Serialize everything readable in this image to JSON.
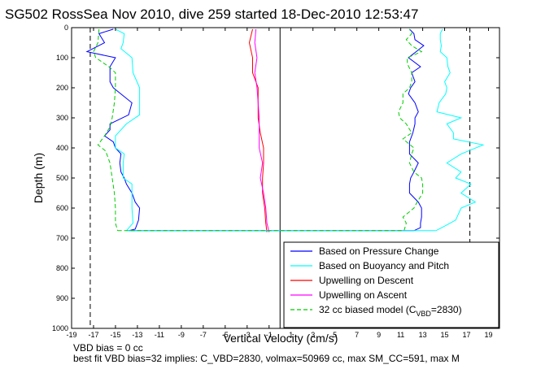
{
  "chart_data": {
    "type": "line",
    "title": "SG502 RossSea Nov 2010, dive 259 started 18-Dec-2010 12:53:47",
    "xlabel": "Vertical Velocity (cm/s)",
    "ylabel": "Depth (m)",
    "xlim": [
      -19,
      20
    ],
    "ylim": [
      1000,
      0
    ],
    "y_reversed": true,
    "x_ticks": [
      -19,
      -17,
      -15,
      -13,
      -11,
      -9,
      -7,
      -5,
      -3,
      -1,
      1,
      3,
      5,
      7,
      9,
      11,
      13,
      15,
      17,
      19
    ],
    "y_ticks": [
      0,
      100,
      200,
      300,
      400,
      500,
      600,
      700,
      800,
      900,
      1000
    ],
    "grid": false,
    "legend_position": "bottom-right",
    "reference_lines": {
      "dashed_vertical_black": [
        -17.3,
        17.3
      ],
      "solid_vertical_black": [
        0
      ]
    },
    "series": [
      {
        "name": "Based on Pressure Change",
        "color": "#0000ff",
        "style": "solid",
        "descent": [
          [
            -15.2,
            5
          ],
          [
            -16.5,
            20
          ],
          [
            -16,
            50
          ],
          [
            -17.6,
            80
          ],
          [
            -15,
            100
          ],
          [
            -15.5,
            130
          ],
          [
            -15.5,
            150
          ],
          [
            -15.5,
            180
          ],
          [
            -15.2,
            200
          ],
          [
            -13.5,
            250
          ],
          [
            -13.8,
            290
          ],
          [
            -15.5,
            320
          ],
          [
            -15.5,
            340
          ],
          [
            -16,
            360
          ],
          [
            -15.2,
            380
          ],
          [
            -15,
            400
          ],
          [
            -14.5,
            420
          ],
          [
            -14.6,
            450
          ],
          [
            -14.5,
            480
          ],
          [
            -14.2,
            500
          ],
          [
            -14,
            520
          ],
          [
            -13.5,
            550
          ],
          [
            -13.2,
            580
          ],
          [
            -12.8,
            600
          ],
          [
            -12.9,
            640
          ],
          [
            -13.2,
            670
          ],
          [
            -13.8,
            675
          ]
        ],
        "ascent": [
          [
            12.2,
            675
          ],
          [
            12.8,
            665
          ],
          [
            12.8,
            650
          ],
          [
            12.9,
            630
          ],
          [
            12.9,
            600
          ],
          [
            12.6,
            580
          ],
          [
            11.8,
            550
          ],
          [
            11.8,
            520
          ],
          [
            11.9,
            500
          ],
          [
            12.2,
            480
          ],
          [
            12.6,
            450
          ],
          [
            11.8,
            420
          ],
          [
            11.8,
            380
          ],
          [
            12.1,
            350
          ],
          [
            12.3,
            320
          ],
          [
            12.3,
            300
          ],
          [
            12.6,
            280
          ],
          [
            12.3,
            250
          ],
          [
            11.7,
            220
          ],
          [
            11.9,
            200
          ],
          [
            12.3,
            180
          ],
          [
            12,
            150
          ],
          [
            12.8,
            130
          ],
          [
            11.7,
            100
          ],
          [
            12.4,
            80
          ],
          [
            13.1,
            60
          ],
          [
            12.3,
            40
          ],
          [
            12.2,
            20
          ],
          [
            11.8,
            5
          ]
        ]
      },
      {
        "name": "Based on Buoyancy and Pitch",
        "color": "#00ffff",
        "style": "solid",
        "descent": [
          [
            -15,
            5
          ],
          [
            -14.2,
            20
          ],
          [
            -14.3,
            50
          ],
          [
            -14.5,
            70
          ],
          [
            -13.5,
            100
          ],
          [
            -13.4,
            150
          ],
          [
            -12.8,
            200
          ],
          [
            -12.8,
            250
          ],
          [
            -12.8,
            290
          ],
          [
            -14,
            320
          ],
          [
            -15,
            360
          ],
          [
            -15,
            400
          ],
          [
            -14.2,
            420
          ],
          [
            -14.3,
            450
          ],
          [
            -14.3,
            480
          ],
          [
            -14.3,
            500
          ],
          [
            -13.5,
            520
          ],
          [
            -13.5,
            550
          ],
          [
            -13.5,
            580
          ],
          [
            -13.5,
            600
          ],
          [
            -13.4,
            650
          ],
          [
            -14,
            675
          ]
        ],
        "ascent": [
          [
            14.2,
            675
          ],
          [
            15,
            660
          ],
          [
            16,
            640
          ],
          [
            16.5,
            600
          ],
          [
            17.8,
            580
          ],
          [
            16.5,
            550
          ],
          [
            17.4,
            520
          ],
          [
            16,
            500
          ],
          [
            16.5,
            480
          ],
          [
            15.2,
            450
          ],
          [
            16.5,
            420
          ],
          [
            18.5,
            390
          ],
          [
            15.8,
            370
          ],
          [
            15.8,
            350
          ],
          [
            15.2,
            320
          ],
          [
            16.5,
            300
          ],
          [
            14.3,
            280
          ],
          [
            14.5,
            250
          ],
          [
            15.1,
            220
          ],
          [
            15.2,
            200
          ],
          [
            15,
            180
          ],
          [
            15.5,
            150
          ],
          [
            15.3,
            130
          ],
          [
            15.2,
            100
          ],
          [
            14.6,
            80
          ],
          [
            14.7,
            60
          ],
          [
            14.6,
            40
          ],
          [
            14.6,
            20
          ],
          [
            14.8,
            5
          ]
        ]
      },
      {
        "name": "Upwelling on Descent",
        "color": "#ff0000",
        "style": "solid",
        "descent": [
          [
            -2.5,
            5
          ],
          [
            -2.8,
            50
          ],
          [
            -2.5,
            100
          ],
          [
            -2.5,
            150
          ],
          [
            -2,
            200
          ],
          [
            -2,
            250
          ],
          [
            -2,
            300
          ],
          [
            -1.8,
            350
          ],
          [
            -1.5,
            400
          ],
          [
            -1.5,
            450
          ],
          [
            -1.6,
            500
          ],
          [
            -1.6,
            550
          ],
          [
            -1.4,
            600
          ],
          [
            -1.3,
            650
          ],
          [
            -1.2,
            680
          ]
        ]
      },
      {
        "name": "Upwelling on Ascent",
        "color": "#ff00ff",
        "style": "solid",
        "ascent": [
          [
            -1,
            680
          ],
          [
            -1.2,
            650
          ],
          [
            -1.3,
            600
          ],
          [
            -1.5,
            550
          ],
          [
            -1.8,
            500
          ],
          [
            -1.6,
            450
          ],
          [
            -1.9,
            400
          ],
          [
            -1.9,
            350
          ],
          [
            -1.9,
            300
          ],
          [
            -2,
            250
          ],
          [
            -2.1,
            200
          ],
          [
            -2.3,
            150
          ],
          [
            -2.1,
            100
          ],
          [
            -2.3,
            50
          ],
          [
            -2.2,
            5
          ]
        ]
      },
      {
        "name": "32 cc biased model (CVBD=2830)",
        "color": "#00cc00",
        "style": "dashed",
        "descent": [
          [
            -16.5,
            5
          ],
          [
            -16.6,
            50
          ],
          [
            -17,
            80
          ],
          [
            -16.8,
            100
          ],
          [
            -15.6,
            130
          ],
          [
            -15,
            150
          ],
          [
            -15,
            200
          ],
          [
            -15.1,
            250
          ],
          [
            -15.3,
            300
          ],
          [
            -15.5,
            330
          ],
          [
            -16,
            360
          ],
          [
            -16.6,
            390
          ],
          [
            -15.9,
            410
          ],
          [
            -15.5,
            450
          ],
          [
            -15.3,
            500
          ],
          [
            -15.1,
            550
          ],
          [
            -15,
            600
          ],
          [
            -15,
            650
          ],
          [
            -14.8,
            675
          ]
        ],
        "ascent": [
          [
            11.3,
            675
          ],
          [
            11.5,
            650
          ],
          [
            11.2,
            630
          ],
          [
            12.2,
            600
          ],
          [
            12.5,
            580
          ],
          [
            13,
            550
          ],
          [
            13,
            520
          ],
          [
            12.9,
            500
          ],
          [
            12.2,
            480
          ],
          [
            11.8,
            450
          ],
          [
            12,
            420
          ],
          [
            12.2,
            400
          ],
          [
            11.2,
            370
          ],
          [
            12,
            350
          ],
          [
            11.5,
            320
          ],
          [
            10.9,
            300
          ],
          [
            10.8,
            280
          ],
          [
            11.2,
            250
          ],
          [
            11.2,
            220
          ],
          [
            11.8,
            200
          ],
          [
            12,
            180
          ],
          [
            12,
            150
          ],
          [
            11.6,
            120
          ],
          [
            11.6,
            100
          ],
          [
            12.9,
            80
          ],
          [
            12,
            60
          ],
          [
            11.5,
            40
          ],
          [
            12,
            20
          ],
          [
            11.8,
            5
          ]
        ]
      }
    ]
  },
  "legend": {
    "entries": [
      {
        "label": "Based on Pressure Change",
        "color": "#0000ff",
        "dashed": false
      },
      {
        "label": "Based on Buoyancy and Pitch",
        "color": "#00ffff",
        "dashed": false
      },
      {
        "label": "Upwelling on Descent",
        "color": "#ff0000",
        "dashed": false
      },
      {
        "label": "Upwelling on Ascent",
        "color": "#ff00ff",
        "dashed": false
      }
    ],
    "model_entry": {
      "prefix": "32 cc biased model (C",
      "sub": "VBD",
      "suffix": "=2830)",
      "color": "#00cc00"
    }
  },
  "footer": {
    "line1": "VBD bias = 0 cc",
    "line2": "best fit VBD bias=32 implies: C_VBD=2830, volmax=50969 cc, max SM_CC=591, max M"
  }
}
